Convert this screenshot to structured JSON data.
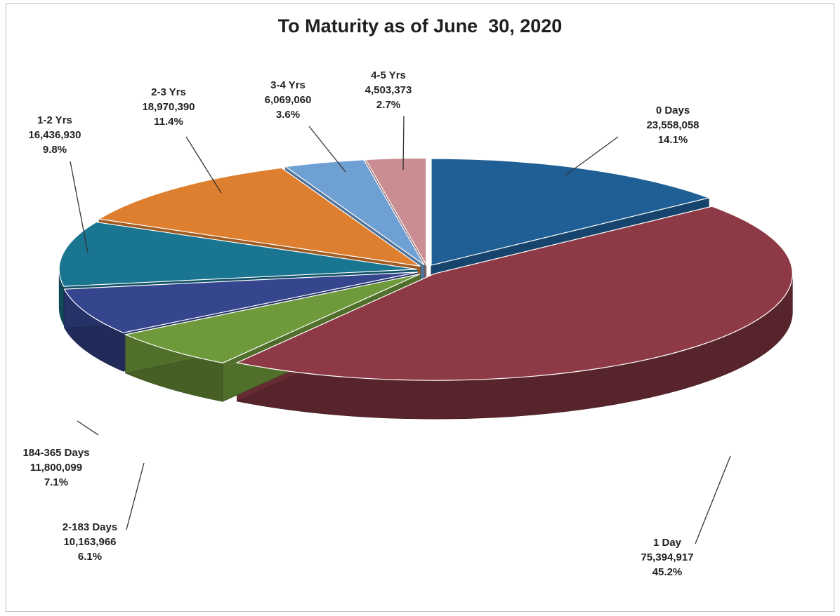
{
  "chart_data": {
    "type": "pie",
    "title": "To Maturity as of June  30, 2020",
    "slices": [
      {
        "label": "0 Days",
        "value": 23558058,
        "value_text": "23,558,058",
        "percent_text": "14.1%",
        "percent": 14.1,
        "color": "#1f5f96"
      },
      {
        "label": "1 Day",
        "value": 75394917,
        "value_text": "75,394,917",
        "percent_text": "45.2%",
        "percent": 45.2,
        "color": "#8e3a46"
      },
      {
        "label": "2-183 Days",
        "value": 10163966,
        "value_text": "10,163,966",
        "percent_text": "6.1%",
        "percent": 6.1,
        "color": "#6f9a3c"
      },
      {
        "label": "184-365 Days",
        "value": 11800099,
        "value_text": "11,800,099",
        "percent_text": "7.1%",
        "percent": 7.1,
        "color": "#35468f"
      },
      {
        "label": "1-2 Yrs",
        "value": 16436930,
        "value_text": "16,436,930",
        "percent_text": "9.8%",
        "percent": 9.8,
        "color": "#1a7591"
      },
      {
        "label": "2-3 Yrs",
        "value": 18970390,
        "value_text": "18,970,390",
        "percent_text": "11.4%",
        "percent": 11.4,
        "color": "#de7f2f"
      },
      {
        "label": "3-4 Yrs",
        "value": 6069060,
        "value_text": "6,069,060",
        "percent_text": "3.6%",
        "percent": 3.6,
        "color": "#6ea0d4"
      },
      {
        "label": "4-5 Yrs",
        "value": 4503373,
        "value_text": "4,503,373",
        "percent_text": "2.7%",
        "percent": 2.7,
        "color": "#c98d92"
      }
    ],
    "legend": "none",
    "style": "3d-exploded-pie"
  }
}
